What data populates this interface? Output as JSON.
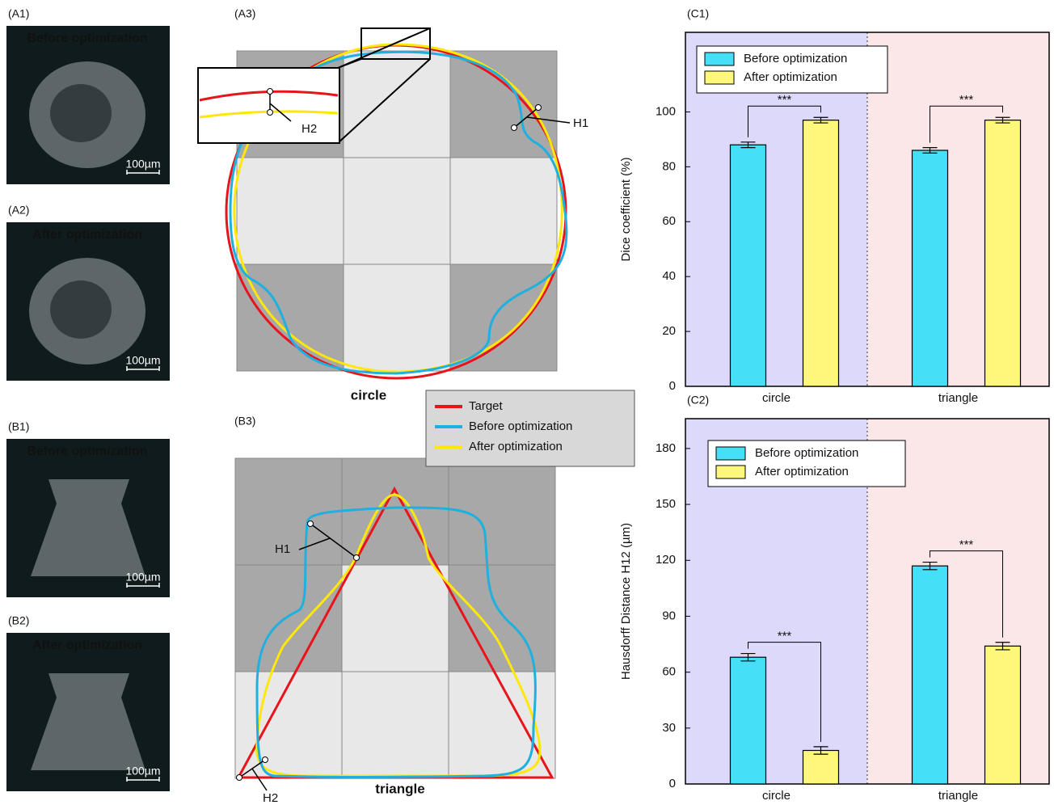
{
  "micrographs": [
    {
      "label": "(A1)",
      "caption": "Before optimization",
      "caption_color": "#1fa9e6",
      "scale": "100µm"
    },
    {
      "label": "(A2)",
      "caption": "After optimization",
      "caption_color": "#f2d21a",
      "scale": "100µm"
    },
    {
      "label": "(B1)",
      "caption": "Before optimization",
      "caption_color": "#1fa9e6",
      "scale": "100µm"
    },
    {
      "label": "(B2)",
      "caption": "After optimization",
      "caption_color": "#f2d21a",
      "scale": "100µm"
    }
  ],
  "diagrams": [
    {
      "label": "(A3)",
      "shape": "circle",
      "h1": "H1",
      "h2": "H2"
    },
    {
      "label": "(B3)",
      "shape": "triangle",
      "h1": "H1",
      "h2": "H2"
    }
  ],
  "legend": [
    {
      "name": "Target",
      "color": "#e8141c"
    },
    {
      "name": "Before optimization",
      "color": "#1fb0e0"
    },
    {
      "name": "After optimization",
      "color": "#ffe70a"
    }
  ],
  "chart_data": [
    {
      "type": "bar",
      "label": "(C1)",
      "ylabel": "Dice coefficient (%)",
      "categories": [
        "circle",
        "triangle"
      ],
      "series": [
        {
          "name": "Before optimization",
          "color": "#45e0f7",
          "values": [
            88,
            86
          ],
          "errors": [
            1,
            1
          ]
        },
        {
          "name": "After optimization",
          "color": "#fdf77c",
          "values": [
            97,
            97
          ],
          "errors": [
            1,
            1
          ]
        }
      ],
      "significance": [
        "***",
        "***"
      ],
      "ylim": [
        0,
        129
      ],
      "yticks": [
        0,
        20,
        40,
        60,
        80,
        100
      ],
      "backgrounds": [
        "#dcd9fb",
        "#fbe6e8"
      ]
    },
    {
      "type": "bar",
      "label": "(C2)",
      "ylabel": "Hausdorff Distance H12 (µm)",
      "categories": [
        "circle",
        "triangle"
      ],
      "series": [
        {
          "name": "Before optimization",
          "color": "#45e0f7",
          "values": [
            68,
            117
          ],
          "errors": [
            2,
            2
          ]
        },
        {
          "name": "After optimization",
          "color": "#fdf77c",
          "values": [
            18,
            74
          ],
          "errors": [
            2,
            2
          ]
        }
      ],
      "significance": [
        "***",
        "***"
      ],
      "ylim": [
        0,
        196
      ],
      "yticks": [
        0,
        30,
        60,
        90,
        120,
        150,
        180
      ],
      "backgrounds": [
        "#dcd9fb",
        "#fbe6e8"
      ]
    }
  ]
}
